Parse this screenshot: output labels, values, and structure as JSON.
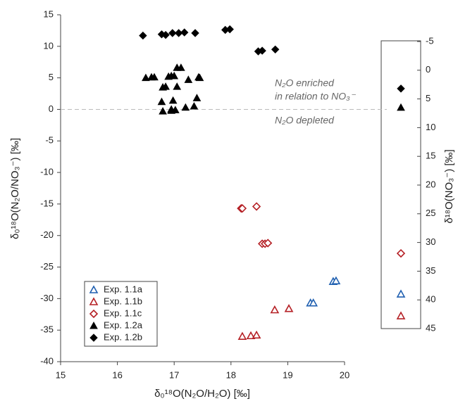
{
  "chart_data": [
    {
      "type": "scatter",
      "x_label": "δ₀¹⁸O(N₂O/H₂O) [‰]",
      "y_label": "δ₀¹⁸O(N₂O/NO₃⁻) [‰]",
      "xlim": [
        15,
        20
      ],
      "xticks": [
        15,
        16,
        17,
        18,
        19,
        20
      ],
      "ylim": [
        -40,
        15
      ],
      "yticks": [
        -40,
        -35,
        -30,
        -25,
        -20,
        -15,
        -10,
        -5,
        0,
        5,
        10,
        15
      ],
      "reference_line": 0,
      "annotations": [
        "N₂O enriched",
        "in relation to NO₃⁻",
        "N₂O depleted"
      ],
      "legend": "lower left",
      "series": [
        {
          "name": "Exp. 1.1a",
          "marker": "triangle",
          "filled": false,
          "color": "#1f5fb0",
          "x": [
            19.4,
            19.45,
            19.8,
            19.85
          ],
          "values": [
            -30.7,
            -30.7,
            -27.3,
            -27.2
          ]
        },
        {
          "name": "Exp. 1.1b",
          "marker": "triangle",
          "filled": false,
          "color": "#b52025",
          "x": [
            18.2,
            18.35,
            18.45,
            18.77,
            19.02
          ],
          "values": [
            -36.0,
            -35.9,
            -35.8,
            -31.8,
            -31.6
          ]
        },
        {
          "name": "Exp. 1.1c",
          "marker": "diamond",
          "filled": false,
          "color": "#b52025",
          "x": [
            18.18,
            18.2,
            18.45,
            18.55,
            18.6,
            18.65
          ],
          "values": [
            -15.7,
            -15.7,
            -15.4,
            -21.3,
            -21.3,
            -21.2
          ]
        },
        {
          "name": "Exp. 1.2a",
          "marker": "triangle",
          "filled": true,
          "color": "#000000",
          "x": [
            16.5,
            16.6,
            16.65,
            16.9,
            16.95,
            17.0,
            17.05,
            17.12,
            17.43,
            17.45,
            16.8,
            16.85,
            17.05,
            17.25,
            16.78,
            16.98,
            17.4,
            16.8,
            16.95,
            17.02,
            17.2,
            17.35,
            16.95
          ],
          "values": [
            5.0,
            5.1,
            5.1,
            5.2,
            5.3,
            5.3,
            6.6,
            6.6,
            5.1,
            5.0,
            3.5,
            3.6,
            3.6,
            4.7,
            1.2,
            1.4,
            1.8,
            -0.3,
            -0.2,
            -0.1,
            0.3,
            0.5,
            0.0
          ]
        },
        {
          "name": "Exp. 1.2b",
          "marker": "diamond",
          "filled": true,
          "color": "#000000",
          "x": [
            16.45,
            16.78,
            16.85,
            16.97,
            17.08,
            17.18,
            17.37,
            17.9,
            17.98,
            18.48,
            18.55,
            18.78
          ],
          "values": [
            11.7,
            11.9,
            11.8,
            12.1,
            12.1,
            12.2,
            12.1,
            12.6,
            12.7,
            9.2,
            9.3,
            9.5
          ]
        }
      ]
    },
    {
      "type": "strip",
      "y_label": "δ¹⁸O(NO₃⁻) [‰]",
      "y2lim": [
        -5,
        45
      ],
      "y2_inverted": true,
      "y2ticks": [
        -5,
        0,
        5,
        10,
        15,
        20,
        25,
        30,
        35,
        40,
        45
      ],
      "series": [
        {
          "marker": "diamond",
          "filled": true,
          "color": "#000000",
          "axis": "y2",
          "values": [
            3.2
          ]
        },
        {
          "marker": "triangle",
          "filled": true,
          "color": "#000000",
          "axis": "y2",
          "values": [
            6.5
          ]
        },
        {
          "marker": "diamond",
          "filled": false,
          "color": "#b52025",
          "axis": "y2",
          "values": [
            31.9
          ]
        },
        {
          "marker": "triangle",
          "filled": false,
          "color": "#1f5fb0",
          "axis": "y2",
          "values": [
            39.0
          ]
        },
        {
          "marker": "triangle",
          "filled": false,
          "color": "#b52025",
          "axis": "y2",
          "values": [
            42.8
          ]
        }
      ]
    }
  ]
}
